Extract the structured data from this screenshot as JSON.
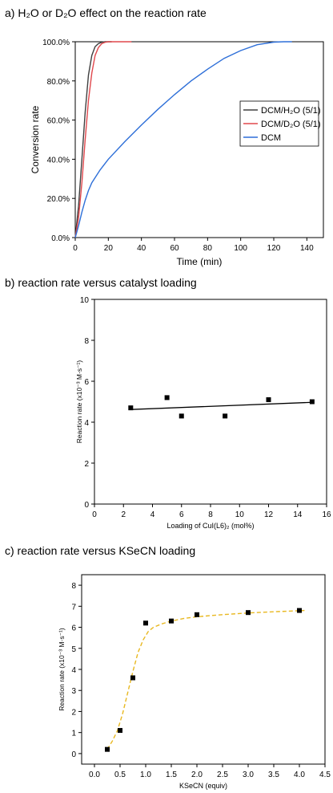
{
  "chart_data": [
    {
      "type": "line",
      "title": "a) H₂O or D₂O effect on the reaction rate",
      "xlabel": "Time (min)",
      "ylabel": "Conversion rate",
      "xlim": [
        0,
        150
      ],
      "ylim": [
        0,
        1.0
      ],
      "xticks": [
        "0",
        "20",
        "40",
        "60",
        "80",
        "100",
        "120",
        "140"
      ],
      "yticks": [
        "0.0%",
        "20.0%",
        "40.0%",
        "60.0%",
        "80.0%",
        "100.0%"
      ],
      "legend_position": "top-right",
      "series": [
        {
          "name": "DCM/H₂O (5/1)",
          "color": "#404040",
          "x": [
            0,
            2,
            4,
            6,
            8,
            10,
            12,
            14,
            16,
            18,
            20,
            22
          ],
          "y": [
            0,
            0.16,
            0.4,
            0.64,
            0.83,
            0.93,
            0.975,
            0.99,
            0.997,
            1.0,
            1.0,
            1.0
          ]
        },
        {
          "name": "DCM/D₂O (5/1)",
          "color": "#e0484d",
          "x": [
            0,
            2,
            4,
            6,
            8,
            10,
            12,
            14,
            16,
            18,
            20,
            25,
            30,
            34
          ],
          "y": [
            0,
            0.1,
            0.28,
            0.5,
            0.7,
            0.84,
            0.93,
            0.97,
            0.99,
            0.997,
            1.0,
            1.0,
            1.0,
            1.0
          ]
        },
        {
          "name": "DCM",
          "color": "#2e6fd8",
          "x": [
            0,
            2,
            4,
            6,
            8,
            10,
            15,
            20,
            30,
            40,
            50,
            60,
            70,
            80,
            90,
            100,
            110,
            120,
            126,
            131
          ],
          "y": [
            0,
            0.06,
            0.13,
            0.19,
            0.24,
            0.28,
            0.345,
            0.4,
            0.49,
            0.575,
            0.655,
            0.73,
            0.8,
            0.86,
            0.915,
            0.955,
            0.985,
            0.998,
            1.0,
            1.0
          ]
        }
      ]
    },
    {
      "type": "scatter",
      "title": "b) reaction rate versus catalyst loading",
      "xlabel": "Loading of CuI(L6)₂ (mol%)",
      "ylabel": "Reaction rate (x10⁻³ M·s⁻¹)",
      "xlim": [
        0,
        16
      ],
      "ylim": [
        0,
        10
      ],
      "xticks": [
        "0",
        "2",
        "4",
        "6",
        "8",
        "10",
        "12",
        "14",
        "16"
      ],
      "yticks": [
        "0",
        "2",
        "4",
        "6",
        "8",
        "10"
      ],
      "points": {
        "x": [
          2.5,
          5,
          6,
          9,
          12,
          15
        ],
        "y": [
          4.7,
          5.2,
          4.3,
          4.3,
          5.1,
          5.0
        ]
      },
      "fit_line": {
        "x": [
          2.5,
          15
        ],
        "y": [
          4.62,
          4.97
        ],
        "color": "#000000"
      }
    },
    {
      "type": "scatter",
      "title": "c) reaction rate versus KSeCN loading",
      "xlabel": "KSeCN (equiv)",
      "ylabel": "Reaction rate (x10⁻³ M·s⁻¹)",
      "xlim": [
        -0.25,
        4.5
      ],
      "ylim": [
        -0.5,
        8.5
      ],
      "xticks": [
        "0.0",
        "0.5",
        "1.0",
        "1.5",
        "2.0",
        "2.5",
        "3.0",
        "3.5",
        "4.0",
        "4.5"
      ],
      "yticks": [
        "0",
        "1",
        "2",
        "3",
        "4",
        "5",
        "6",
        "7",
        "8"
      ],
      "points": {
        "x": [
          0.25,
          0.5,
          0.75,
          1.0,
          1.5,
          2.0,
          3.0,
          4.0
        ],
        "y": [
          0.2,
          1.1,
          3.6,
          6.2,
          6.3,
          6.6,
          6.7,
          6.8
        ]
      },
      "fit_curve": {
        "color": "#e8b820",
        "x": [
          0.25,
          0.35,
          0.45,
          0.55,
          0.65,
          0.75,
          0.85,
          0.95,
          1.05,
          1.15,
          1.3,
          1.5,
          1.75,
          2.0,
          2.5,
          3.0,
          3.5,
          4.1
        ],
        "y": [
          0.2,
          0.6,
          1.1,
          1.9,
          2.9,
          3.9,
          4.8,
          5.4,
          5.8,
          6.0,
          6.15,
          6.3,
          6.42,
          6.5,
          6.6,
          6.68,
          6.74,
          6.8
        ]
      }
    }
  ]
}
